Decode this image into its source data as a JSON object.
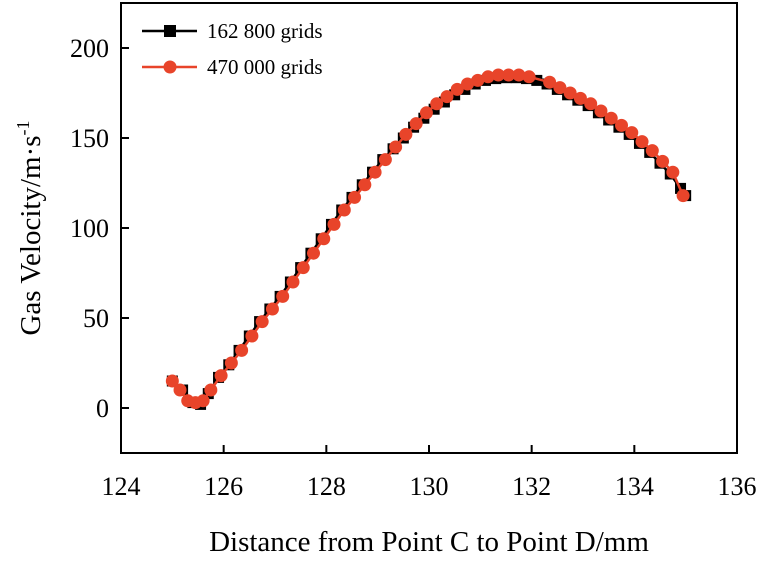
{
  "chart_data": {
    "type": "line",
    "xlabel": "Distance from Point C to Point D/mm",
    "ylabel_main": "Gas Velocity/m·s",
    "ylabel_sup": "-1",
    "xlim": [
      124,
      136
    ],
    "ylim": [
      -25,
      225
    ],
    "xticks": [
      124,
      126,
      128,
      130,
      132,
      134,
      136
    ],
    "yticks": [
      0,
      50,
      100,
      150,
      200
    ],
    "legend_position": "top-left",
    "series": [
      {
        "name": "162 800 grids",
        "color": "#000000",
        "marker": "square",
        "x": [
          125.0,
          125.2,
          125.4,
          125.55,
          125.7,
          125.9,
          126.1,
          126.3,
          126.5,
          126.7,
          126.9,
          127.1,
          127.3,
          127.5,
          127.7,
          127.9,
          128.1,
          128.3,
          128.5,
          128.7,
          128.9,
          129.1,
          129.3,
          129.5,
          129.7,
          129.9,
          130.1,
          130.3,
          130.5,
          130.7,
          130.9,
          131.1,
          131.3,
          131.5,
          131.7,
          131.9,
          132.1,
          132.3,
          132.5,
          132.7,
          132.9,
          133.1,
          133.3,
          133.5,
          133.7,
          133.9,
          134.1,
          134.3,
          134.5,
          134.7,
          134.9,
          135.0
        ],
        "y": [
          15,
          10,
          3,
          2,
          8,
          17,
          24,
          32,
          40,
          48,
          55,
          62,
          70,
          78,
          86,
          94,
          102,
          110,
          117,
          124,
          131,
          138,
          144,
          150,
          156,
          161,
          166,
          170,
          174,
          177,
          180,
          182,
          183,
          183.5,
          183.5,
          183,
          182,
          180,
          177,
          174,
          171,
          168,
          164,
          160,
          156,
          152,
          147,
          142,
          136,
          130,
          122,
          118
        ]
      },
      {
        "name": "470 000 grids",
        "color": "#e8442a",
        "marker": "circle",
        "x": [
          125.0,
          125.15,
          125.3,
          125.45,
          125.6,
          125.75,
          125.95,
          126.15,
          126.35,
          126.55,
          126.75,
          126.95,
          127.15,
          127.35,
          127.55,
          127.75,
          127.95,
          128.15,
          128.35,
          128.55,
          128.75,
          128.95,
          129.15,
          129.35,
          129.55,
          129.75,
          129.95,
          130.15,
          130.35,
          130.55,
          130.75,
          130.95,
          131.15,
          131.35,
          131.55,
          131.75,
          131.95,
          132.35,
          132.55,
          132.75,
          132.95,
          133.15,
          133.35,
          133.55,
          133.75,
          133.95,
          134.15,
          134.35,
          134.55,
          134.75,
          134.95
        ],
        "y": [
          15,
          10,
          4,
          3,
          4,
          10,
          18,
          25,
          32,
          40,
          48,
          55,
          62,
          70,
          78,
          86,
          94,
          102,
          110,
          117,
          124,
          131,
          138,
          145,
          152,
          158,
          164,
          169,
          173,
          177,
          180,
          182,
          184,
          185,
          185,
          185,
          184,
          181,
          178,
          175,
          172,
          169,
          165,
          161,
          157,
          153,
          148,
          143,
          137,
          131,
          118
        ]
      }
    ]
  }
}
